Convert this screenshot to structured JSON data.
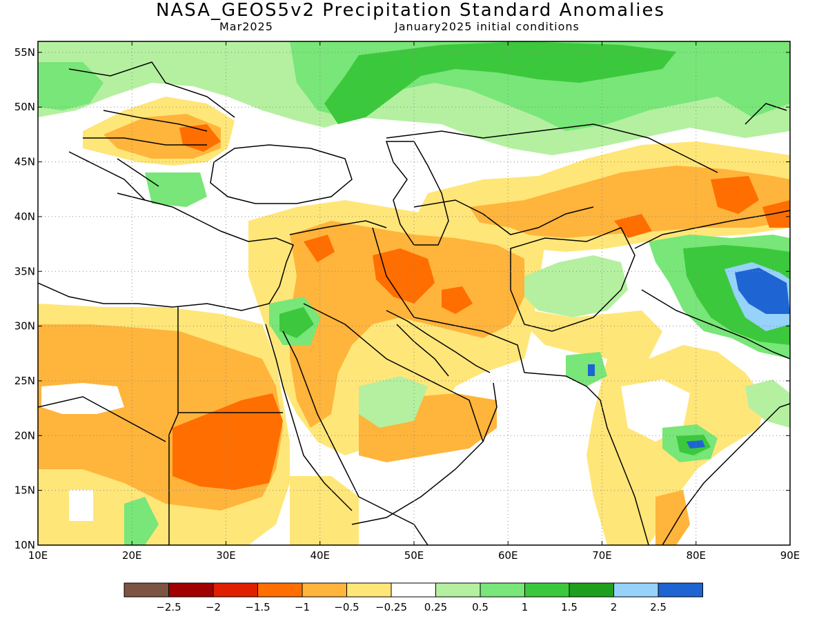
{
  "title": "NASA_GEOS5v2 Precipitation Standard Anomalies",
  "subtitle_left": "Mar2025",
  "subtitle_right": "January2025 initial conditions",
  "map": {
    "lon_range": [
      10,
      90
    ],
    "lat_range": [
      10,
      56
    ],
    "lon_ticks": [
      "10E",
      "20E",
      "30E",
      "40E",
      "50E",
      "60E",
      "70E",
      "80E",
      "90E"
    ],
    "lat_ticks": [
      "10N",
      "15N",
      "20N",
      "25N",
      "30N",
      "35N",
      "40N",
      "45N",
      "50N",
      "55N"
    ],
    "grid": true
  },
  "colorbar": {
    "colors": [
      "#7b5442",
      "#a00000",
      "#e01e00",
      "#ff6e00",
      "#ffb43c",
      "#ffe678",
      "#ffffff",
      "#b4f0a0",
      "#78e678",
      "#3cc83c",
      "#1ea01e",
      "#96d2fa",
      "#1e64d2"
    ],
    "labels": [
      "−2.5",
      "−2",
      "−1.5",
      "−1",
      "−0.5",
      "−0.25",
      "0.25",
      "0.5",
      "1",
      "1.5",
      "2",
      "2.5"
    ]
  },
  "anomaly_regions": [
    {
      "name": "central-asia-green-band",
      "category": "0.5"
    },
    {
      "name": "russia-north-green",
      "category": "1"
    },
    {
      "name": "balkans-orange",
      "category": "-1"
    },
    {
      "name": "iran-iraq-orange",
      "category": "-1"
    },
    {
      "name": "sudan-dark-orange",
      "category": "-1.5"
    },
    {
      "name": "tibet-blue",
      "category": "2.5"
    },
    {
      "name": "india-central-green",
      "category": "1"
    }
  ]
}
